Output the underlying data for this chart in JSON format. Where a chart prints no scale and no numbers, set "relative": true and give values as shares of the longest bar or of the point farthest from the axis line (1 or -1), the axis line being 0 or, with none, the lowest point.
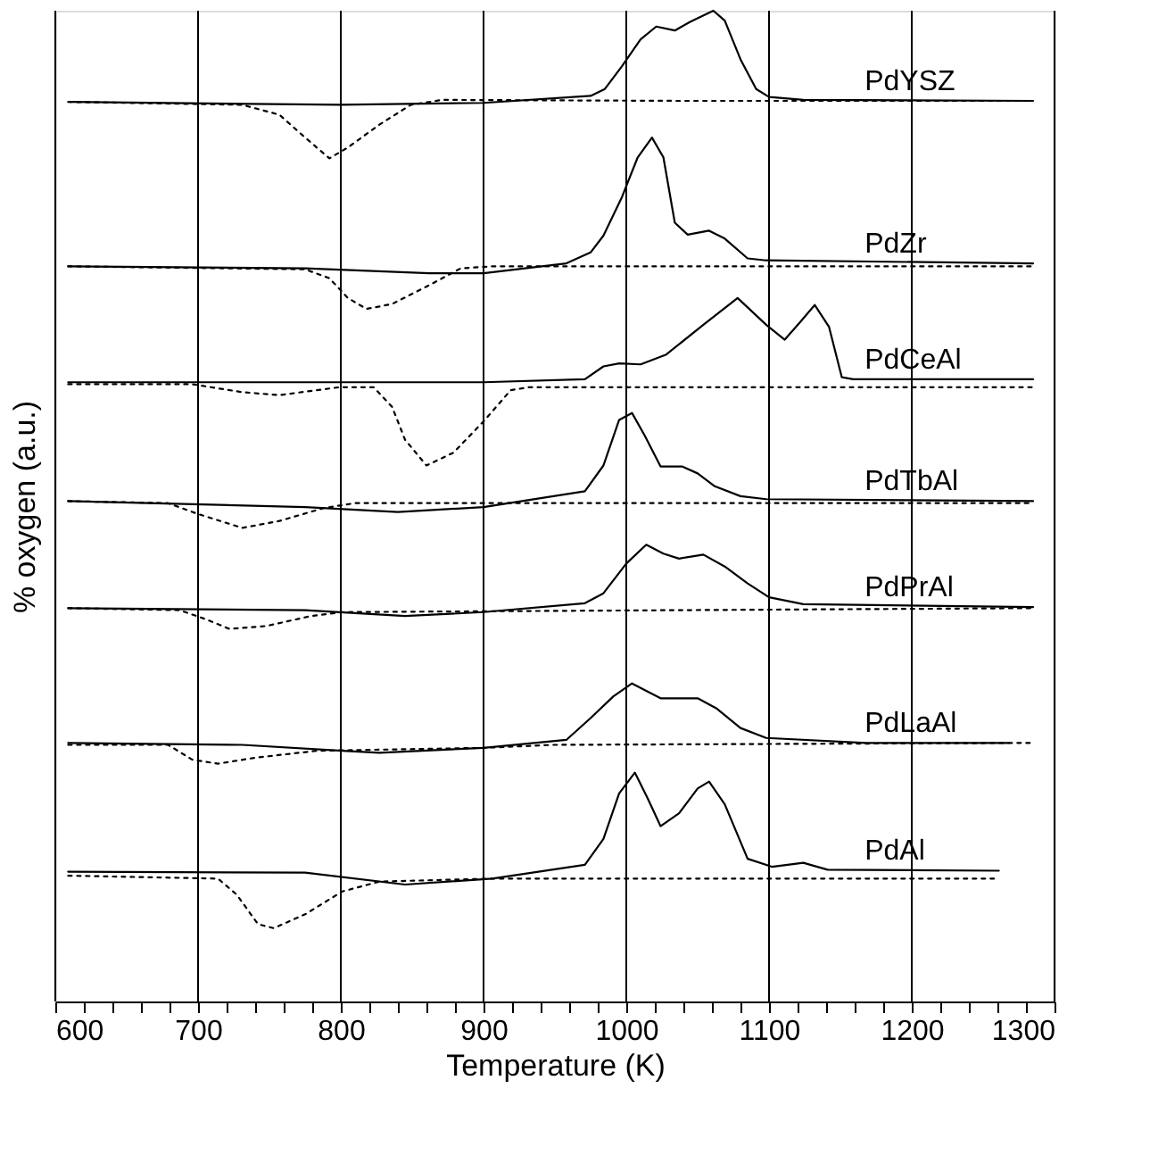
{
  "chart_data": {
    "type": "line",
    "xlabel": "Temperature (K)",
    "ylabel": "% oxygen (a.u.)",
    "relative": true,
    "xlim": [
      600,
      1300
    ],
    "xticks": [
      600,
      {
        "value": 620,
        "label": null
      },
      {
        "value": 640,
        "label": null
      },
      {
        "value": 660,
        "label": null
      },
      {
        "value": 680,
        "label": null
      },
      700,
      {
        "value": 720,
        "label": null
      },
      {
        "value": 740,
        "label": null
      },
      {
        "value": 760,
        "label": null
      },
      {
        "value": 780,
        "label": null
      },
      800,
      {
        "value": 820,
        "label": null
      },
      {
        "value": 840,
        "label": null
      },
      {
        "value": 860,
        "label": null
      },
      {
        "value": 880,
        "label": null
      },
      900,
      {
        "value": 920,
        "label": null
      },
      {
        "value": 940,
        "label": null
      },
      {
        "value": 960,
        "label": null
      },
      {
        "value": 980,
        "label": null
      },
      1000,
      {
        "value": 1020,
        "label": null
      },
      {
        "value": 1040,
        "label": null
      },
      {
        "value": 1060,
        "label": null
      },
      {
        "value": 1080,
        "label": null
      },
      1100,
      {
        "value": 1120,
        "label": null
      },
      {
        "value": 1140,
        "label": null
      },
      {
        "value": 1160,
        "label": null
      },
      {
        "value": 1180,
        "label": null
      },
      1200,
      {
        "value": 1220,
        "label": null
      },
      {
        "value": 1240,
        "label": null
      },
      {
        "value": 1260,
        "label": null
      },
      {
        "value": 1280,
        "label": null
      },
      1300
    ],
    "grid": "x",
    "legend": false,
    "tick_labels": "x",
    "series": [
      {
        "name": "PdYSZ",
        "color": "#000000",
        "line_style": "solid",
        "x": [
          610,
          800,
          900,
          975,
          985,
          997,
          1010,
          1021,
          1034,
          1045,
          1061,
          1069,
          1080,
          1091,
          1100,
          1124,
          1285
        ],
        "values": [
          0.908,
          0.905,
          0.907,
          0.914,
          0.921,
          0.944,
          0.971,
          0.984,
          0.98,
          0.989,
          1.0,
          0.99,
          0.951,
          0.921,
          0.913,
          0.91,
          0.909
        ]
      },
      {
        "color": "#000000",
        "line_style": "dotted",
        "x": [
          609,
          731,
          757,
          775,
          792,
          805,
          827,
          849,
          871,
          1037,
          1285
        ],
        "values": [
          0.908,
          0.905,
          0.895,
          0.872,
          0.851,
          0.862,
          0.885,
          0.905,
          0.91,
          0.909,
          0.909
        ]
      },
      {
        "name": "PdZr",
        "color": "#000000",
        "line_style": "solid",
        "x": [
          609,
          775,
          862,
          900,
          958,
          975,
          984,
          997,
          1008,
          1018,
          1026,
          1034,
          1043,
          1058,
          1069,
          1085,
          1098,
          1285
        ],
        "values": [
          0.742,
          0.74,
          0.735,
          0.735,
          0.745,
          0.756,
          0.773,
          0.812,
          0.852,
          0.872,
          0.852,
          0.786,
          0.774,
          0.778,
          0.77,
          0.75,
          0.748,
          0.745
        ]
      },
      {
        "color": "#000000",
        "line_style": "dotted",
        "x": [
          609,
          775,
          792,
          805,
          818,
          836,
          862,
          884,
          906,
          1285
        ],
        "values": [
          0.742,
          0.739,
          0.73,
          0.71,
          0.699,
          0.704,
          0.723,
          0.74,
          0.742,
          0.742
        ]
      },
      {
        "name": "PdCeAl",
        "color": "#000000",
        "line_style": "solid",
        "x": [
          609,
          900,
          971,
          984,
          995,
          1010,
          1028,
          1054,
          1078,
          1098,
          1111,
          1122,
          1132,
          1142,
          1151,
          1159,
          1285
        ],
        "values": [
          0.625,
          0.625,
          0.628,
          0.641,
          0.644,
          0.643,
          0.653,
          0.683,
          0.71,
          0.683,
          0.668,
          0.686,
          0.703,
          0.681,
          0.63,
          0.628,
          0.628
        ]
      },
      {
        "color": "#000000",
        "line_style": "dotted",
        "x": [
          609,
          696,
          731,
          757,
          783,
          799,
          823,
          836,
          845,
          860,
          879,
          901,
          919,
          932,
          1285
        ],
        "values": [
          0.623,
          0.623,
          0.615,
          0.612,
          0.617,
          0.62,
          0.62,
          0.6,
          0.567,
          0.541,
          0.554,
          0.587,
          0.617,
          0.62,
          0.62
        ]
      },
      {
        "name": "PdTbAl",
        "color": "#000000",
        "line_style": "solid",
        "x": [
          609,
          775,
          840,
          900,
          971,
          984,
          995,
          1004,
          1013,
          1024,
          1039,
          1050,
          1062,
          1080,
          1098,
          1285
        ],
        "values": [
          0.505,
          0.499,
          0.494,
          0.499,
          0.515,
          0.541,
          0.587,
          0.594,
          0.571,
          0.54,
          0.54,
          0.533,
          0.52,
          0.51,
          0.507,
          0.505
        ]
      },
      {
        "color": "#000000",
        "line_style": "dotted",
        "x": [
          609,
          679,
          700,
          731,
          757,
          788,
          810,
          1285
        ],
        "values": [
          0.505,
          0.503,
          0.492,
          0.478,
          0.485,
          0.498,
          0.503,
          0.503
        ]
      },
      {
        "name": "PdPrAl",
        "color": "#000000",
        "line_style": "solid",
        "x": [
          609,
          775,
          845,
          900,
          971,
          984,
          1000,
          1014,
          1026,
          1037,
          1054,
          1069,
          1085,
          1100,
          1124,
          1285
        ],
        "values": [
          0.397,
          0.395,
          0.389,
          0.393,
          0.402,
          0.412,
          0.442,
          0.461,
          0.452,
          0.447,
          0.451,
          0.439,
          0.422,
          0.408,
          0.401,
          0.398
        ]
      },
      {
        "color": "#000000",
        "line_style": "dotted",
        "x": [
          609,
          687,
          705,
          722,
          748,
          779,
          801,
          1285
        ],
        "values": [
          0.397,
          0.395,
          0.386,
          0.376,
          0.379,
          0.389,
          0.393,
          0.397
        ]
      },
      {
        "name": "PdLaAl",
        "color": "#000000",
        "line_style": "solid",
        "x": [
          609,
          731,
          801,
          827,
          900,
          958,
          975,
          991,
          1004,
          1024,
          1050,
          1063,
          1080,
          1098,
          1168,
          1268
        ],
        "values": [
          0.261,
          0.259,
          0.253,
          0.251,
          0.256,
          0.264,
          0.286,
          0.308,
          0.321,
          0.306,
          0.306,
          0.296,
          0.276,
          0.266,
          0.261,
          0.261
        ]
      },
      {
        "color": "#000000",
        "line_style": "dotted",
        "x": [
          609,
          679,
          696,
          714,
          740,
          783,
          900,
          949,
          1285
        ],
        "values": [
          0.259,
          0.259,
          0.244,
          0.24,
          0.246,
          0.253,
          0.256,
          0.259,
          0.261
        ]
      },
      {
        "name": "PdAl",
        "color": "#000000",
        "line_style": "solid",
        "x": [
          609,
          775,
          845,
          906,
          971,
          984,
          995,
          1006,
          1015,
          1024,
          1037,
          1050,
          1058,
          1069,
          1085,
          1102,
          1124,
          1141,
          1261
        ],
        "values": [
          0.131,
          0.13,
          0.118,
          0.124,
          0.138,
          0.164,
          0.21,
          0.231,
          0.205,
          0.177,
          0.19,
          0.215,
          0.222,
          0.199,
          0.144,
          0.136,
          0.14,
          0.133,
          0.132
        ]
      },
      {
        "color": "#000000",
        "line_style": "dotted",
        "x": [
          609,
          714,
          727,
          742,
          753,
          775,
          801,
          827,
          906,
          1261
        ],
        "values": [
          0.127,
          0.124,
          0.108,
          0.078,
          0.074,
          0.088,
          0.111,
          0.121,
          0.124,
          0.124
        ]
      }
    ]
  }
}
